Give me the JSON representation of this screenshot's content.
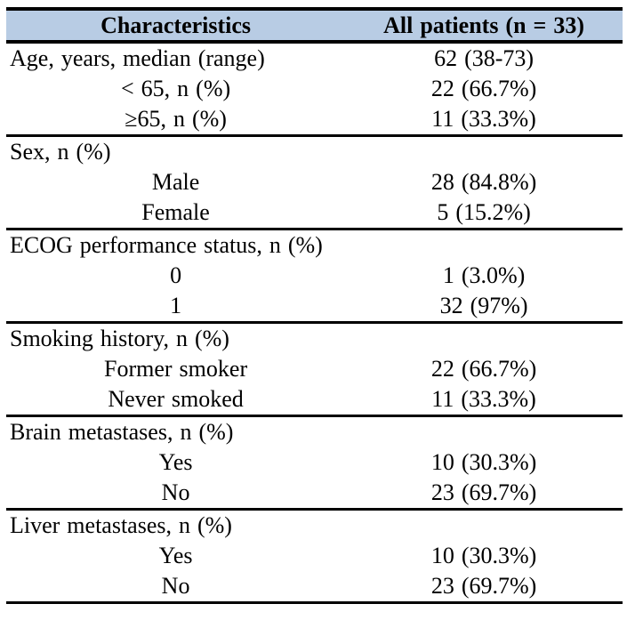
{
  "table": {
    "title_semantic": "patient-characteristics-table",
    "header_bg": "#B8CCE4",
    "rule_color": "#000000",
    "header": {
      "characteristics": "Characteristics",
      "all_patients": "All patients (n = 33)"
    },
    "rows": [
      {
        "label": "Age, years, median (range)",
        "value": "62 (38-73)",
        "align": "left",
        "section_start": false
      },
      {
        "label": "< 65, n (%)",
        "value": "22 (66.7%)",
        "align": "center",
        "section_start": false
      },
      {
        "label": "≥65, n (%)",
        "value": "11 (33.3%)",
        "align": "center",
        "section_start": false
      },
      {
        "label": "Sex, n (%)",
        "value": "",
        "align": "left",
        "section_start": true
      },
      {
        "label": "Male",
        "value": "28 (84.8%)",
        "align": "center",
        "section_start": false
      },
      {
        "label": "Female",
        "value": "5 (15.2%)",
        "align": "center",
        "section_start": false
      },
      {
        "label": "ECOG performance status, n (%)",
        "value": "",
        "align": "left",
        "section_start": true
      },
      {
        "label": "0",
        "value": "1 (3.0%)",
        "align": "center",
        "section_start": false
      },
      {
        "label": "1",
        "value": "32 (97%)",
        "align": "center",
        "section_start": false
      },
      {
        "label": "Smoking history, n (%)",
        "value": "",
        "align": "left",
        "section_start": true
      },
      {
        "label": "Former smoker",
        "value": "22 (66.7%)",
        "align": "center",
        "section_start": false
      },
      {
        "label": "Never smoked",
        "value": "11 (33.3%)",
        "align": "center",
        "section_start": false
      },
      {
        "label": "Brain metastases, n (%)",
        "value": "",
        "align": "left",
        "section_start": true
      },
      {
        "label": "Yes",
        "value": "10 (30.3%)",
        "align": "center",
        "section_start": false
      },
      {
        "label": "No",
        "value": "23 (69.7%)",
        "align": "center",
        "section_start": false
      },
      {
        "label": "Liver metastases, n (%)",
        "value": "",
        "align": "left",
        "section_start": true
      },
      {
        "label": "Yes",
        "value": "10 (30.3%)",
        "align": "center",
        "section_start": false
      },
      {
        "label": "No",
        "value": "23 (69.7%)",
        "align": "center",
        "section_start": false
      }
    ]
  }
}
